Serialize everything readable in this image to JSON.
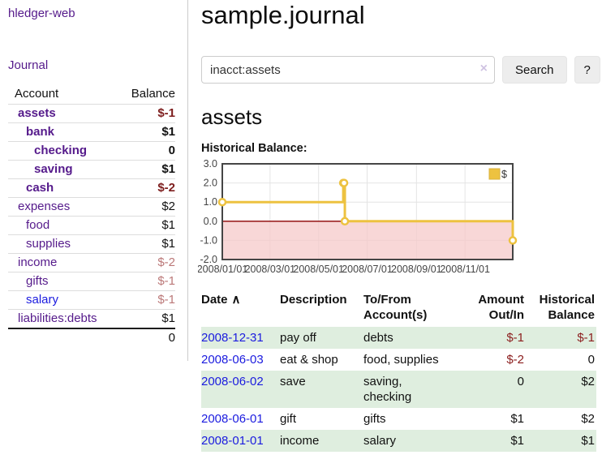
{
  "app": {
    "title": "hledger-web"
  },
  "colors": {
    "link_visited_purple": "#551a8b",
    "link_blue": "#1b1bdf",
    "negative_strong": "#7d1d1d",
    "negative_soft": "#bb7878",
    "negative_register": "#8b1d1d",
    "row_green": "#dfeedf",
    "chart_line_gold": "#edc240",
    "chart_zero_line": "#8b0000",
    "chart_negative_fill": "#f6caca"
  },
  "sidebar": {
    "journal_link": "Journal",
    "accounts_table": {
      "account_header": "Account",
      "balance_header": "Balance",
      "rows": [
        {
          "account": "assets",
          "balance": "$-1",
          "level": 1,
          "bold": true
        },
        {
          "account": "bank",
          "balance": "$1",
          "level": 2,
          "bold": true
        },
        {
          "account": "checking",
          "balance": "0",
          "level": 3,
          "bold": true
        },
        {
          "account": "saving",
          "balance": "$1",
          "level": 3,
          "bold": true
        },
        {
          "account": "cash",
          "balance": "$-2",
          "level": 2,
          "bold": true
        },
        {
          "account": "expenses",
          "balance": "$2",
          "level": 1,
          "bold": false
        },
        {
          "account": "food",
          "balance": "$1",
          "level": 2,
          "bold": false
        },
        {
          "account": "supplies",
          "balance": "$1",
          "level": 2,
          "bold": false
        },
        {
          "account": "income",
          "balance": "$-2",
          "level": 1,
          "bold": false
        },
        {
          "account": "gifts",
          "balance": "$-1",
          "level": 2,
          "bold": false
        },
        {
          "account": "salary",
          "balance": "$-1",
          "level": 2,
          "bold": false,
          "unvisited": true
        },
        {
          "account": "liabilities:debts",
          "balance": "$1",
          "level": 1,
          "bold": false
        }
      ],
      "total": "0"
    }
  },
  "main": {
    "title": "sample.journal",
    "search": {
      "value": "inacct:assets",
      "clear_icon": "×",
      "search_button": "Search",
      "help_button": "?"
    },
    "account_heading": "assets",
    "chart_title": "Historical Balance:"
  },
  "chart_data": {
    "type": "line",
    "title": "Historical Balance:",
    "step": true,
    "x_tick_labels": [
      "2008/01/01",
      "2008/03/01",
      "2008/05/01",
      "2008/07/01",
      "2008/09/01",
      "2008/11/01"
    ],
    "y_tick_labels": [
      "3.0",
      "2.0",
      "1.0",
      "0.0",
      "-1.0",
      "-2.0"
    ],
    "xlim": [
      "2008-01-01",
      "2008-12-31"
    ],
    "ylim": [
      -2,
      3
    ],
    "series": [
      {
        "name": "$",
        "color": "#edc240",
        "points": [
          [
            "2008-01-01",
            1
          ],
          [
            "2008-06-01",
            2
          ],
          [
            "2008-06-02",
            2
          ],
          [
            "2008-06-03",
            0
          ],
          [
            "2008-12-31",
            -1
          ]
        ]
      }
    ],
    "negative_region": {
      "from": 0,
      "to": -2,
      "fill": "#f6caca"
    },
    "zero_line_color": "#8b0000",
    "legend": {
      "label": "$",
      "position": "top-right"
    },
    "grid": true
  },
  "register": {
    "sort_icon": "∧",
    "columns": [
      {
        "id": "date",
        "lines": [
          "Date"
        ],
        "align": "left",
        "sorted": true
      },
      {
        "id": "description",
        "lines": [
          "Description"
        ],
        "align": "left"
      },
      {
        "id": "accounts",
        "lines": [
          "To/From",
          "Account(s)"
        ],
        "align": "left"
      },
      {
        "id": "amount",
        "lines": [
          "Amount",
          "Out/In"
        ],
        "align": "right"
      },
      {
        "id": "balance",
        "lines": [
          "Historical",
          "Balance"
        ],
        "align": "right"
      }
    ],
    "rows": [
      {
        "date": "2008-12-31",
        "description": "pay off",
        "accounts": "debts",
        "amount": "$-1",
        "balance": "$-1"
      },
      {
        "date": "2008-06-03",
        "description": "eat & shop",
        "accounts": "food, supplies",
        "amount": "$-2",
        "balance": "0"
      },
      {
        "date": "2008-06-02",
        "description": "save",
        "accounts": "saving, checking",
        "amount": "0",
        "balance": "$2"
      },
      {
        "date": "2008-06-01",
        "description": "gift",
        "accounts": "gifts",
        "amount": "$1",
        "balance": "$2"
      },
      {
        "date": "2008-01-01",
        "description": "income",
        "accounts": "salary",
        "amount": "$1",
        "balance": "$1"
      }
    ]
  }
}
